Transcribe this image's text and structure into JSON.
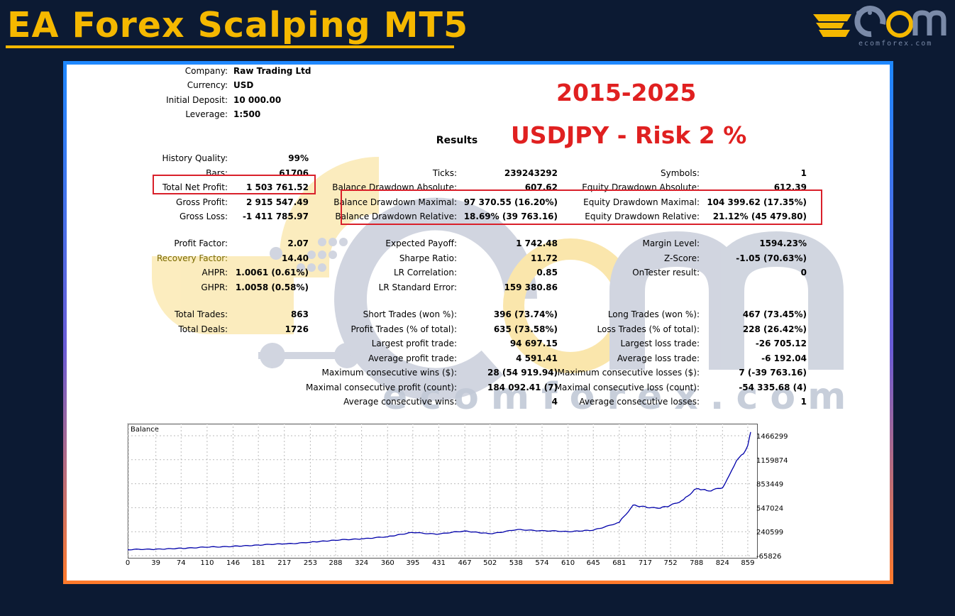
{
  "header": {
    "title": "EA Forex Scalping MT5",
    "logo_site": "ecomforex.com",
    "brand_color": "#f5b800"
  },
  "report": {
    "top": [
      {
        "label": "Company:",
        "value": "Raw Trading Ltd"
      },
      {
        "label": "Currency:",
        "value": "USD"
      },
      {
        "label": "Initial Deposit:",
        "value": "10 000.00"
      },
      {
        "label": "Leverage:",
        "value": "1:500"
      }
    ],
    "period": "2015-2025",
    "pair_risk": "USDJPY - Risk 2 %",
    "results_label": "Results",
    "col1": [
      {
        "label": "History Quality:",
        "value": "99%"
      },
      {
        "label": "Bars:",
        "value": "61706"
      },
      {
        "label": "Total Net Profit:",
        "value": "1 503 761.52"
      },
      {
        "label": "Gross Profit:",
        "value": "2 915 547.49"
      },
      {
        "label": "Gross Loss:",
        "value": "-1 411 785.97"
      },
      {
        "label": "Profit Factor:",
        "value": "2.07"
      },
      {
        "label": "Recovery Factor:",
        "value": "14.40"
      },
      {
        "label": "AHPR:",
        "value": "1.0061 (0.61%)"
      },
      {
        "label": "GHPR:",
        "value": "1.0058 (0.58%)"
      },
      {
        "label": "Total Trades:",
        "value": "863"
      },
      {
        "label": "Total Deals:",
        "value": "1726"
      }
    ],
    "col2": [
      {
        "label": "Ticks:",
        "value": "239243292"
      },
      {
        "label": "Balance Drawdown Absolute:",
        "value": "607.62"
      },
      {
        "label": "Balance Drawdown Maximal:",
        "value": "97 370.55 (16.20%)"
      },
      {
        "label": "Balance Drawdown Relative:",
        "value": "18.69% (39 763.16)"
      },
      {
        "label": "Expected Payoff:",
        "value": "1 742.48"
      },
      {
        "label": "Sharpe Ratio:",
        "value": "11.72"
      },
      {
        "label": "LR Correlation:",
        "value": "0.85"
      },
      {
        "label": "LR Standard Error:",
        "value": "159 380.86"
      },
      {
        "label": "Short Trades (won %):",
        "value": "396 (73.74%)"
      },
      {
        "label": "Profit Trades (% of total):",
        "value": "635 (73.58%)"
      },
      {
        "label": "Largest profit trade:",
        "value": "94 697.15"
      },
      {
        "label": "Average profit trade:",
        "value": "4 591.41"
      },
      {
        "label": "Maximum consecutive wins ($):",
        "value": "28 (54 919.94)"
      },
      {
        "label": "Maximal consecutive profit (count):",
        "value": "184 092.41 (7)"
      },
      {
        "label": "Average consecutive wins:",
        "value": "4"
      }
    ],
    "col3": [
      {
        "label": "Symbols:",
        "value": "1"
      },
      {
        "label": "Equity Drawdown Absolute:",
        "value": "612.39"
      },
      {
        "label": "Equity Drawdown Maximal:",
        "value": "104 399.62 (17.35%)"
      },
      {
        "label": "Equity Drawdown Relative:",
        "value": "21.12% (45 479.80)"
      },
      {
        "label": "Margin Level:",
        "value": "1594.23%"
      },
      {
        "label": "Z-Score:",
        "value": "-1.05 (70.63%)"
      },
      {
        "label": "OnTester result:",
        "value": "0"
      },
      {
        "label": "Long Trades (won %):",
        "value": "467 (73.45%)"
      },
      {
        "label": "Loss Trades (% of total):",
        "value": "228 (26.42%)"
      },
      {
        "label": "Largest loss trade:",
        "value": "-26 705.12"
      },
      {
        "label": "Average loss trade:",
        "value": "-6 192.04"
      },
      {
        "label": "Maximum consecutive losses ($):",
        "value": "7 (-39 763.16)"
      },
      {
        "label": "Maximal consecutive loss (count):",
        "value": "-54 335.68 (4)"
      },
      {
        "label": "Average consecutive losses:",
        "value": "1"
      }
    ],
    "watermark": "ecomforex.com"
  },
  "chart_data": {
    "type": "line",
    "title": "Balance",
    "x_ticks": [
      "0",
      "39",
      "74",
      "110",
      "146",
      "181",
      "217",
      "253",
      "288",
      "324",
      "360",
      "395",
      "431",
      "467",
      "502",
      "538",
      "574",
      "610",
      "645",
      "681",
      "717",
      "752",
      "788",
      "824",
      "859"
    ],
    "y_ticks": [
      "1466299",
      "1159874",
      "853449",
      "547024",
      "240599",
      "-65826"
    ],
    "ylim": [
      -65826,
      1466299
    ],
    "xlim": [
      0,
      863
    ],
    "series": [
      {
        "color": "#0000aa",
        "x": [
          0,
          39,
          74,
          110,
          146,
          181,
          217,
          253,
          288,
          324,
          360,
          395,
          431,
          467,
          502,
          538,
          574,
          610,
          645,
          681,
          700,
          717,
          735,
          752,
          770,
          788,
          805,
          824,
          840,
          850,
          859,
          863
        ],
        "y": [
          10000,
          18000,
          30000,
          42000,
          55000,
          70000,
          85000,
          105000,
          130000,
          150000,
          175000,
          230000,
          210000,
          250000,
          215000,
          265000,
          255000,
          240000,
          260000,
          360000,
          580000,
          560000,
          540000,
          580000,
          650000,
          790000,
          760000,
          800000,
          1080000,
          1220000,
          1340000,
          1513761
        ]
      }
    ]
  }
}
